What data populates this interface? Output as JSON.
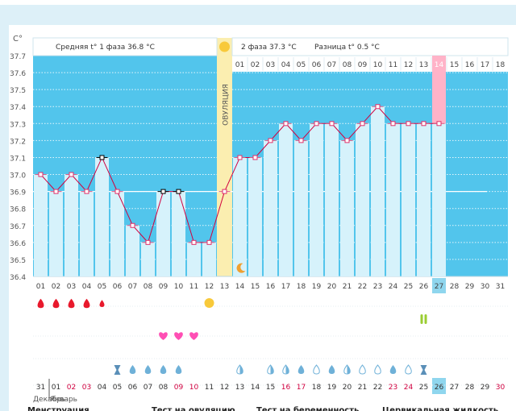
{
  "chart_data": {
    "type": "line",
    "title": "",
    "y_unit": "C°",
    "ylim": [
      36.4,
      37.7
    ],
    "y_ticks": [
      "37.7",
      "37.6",
      "37.5",
      "37.4",
      "37.3",
      "37.2",
      "37.1",
      "37.0",
      "36.9",
      "36.8",
      "36.7",
      "36.6",
      "36.5",
      "36.4"
    ],
    "cycle_days": 31,
    "ovulation_day": 13,
    "ovulation_label": "ОВУЛЯЦИЯ",
    "highlight_day": 27,
    "coverline": 36.9,
    "phase1_days": [
      1,
      2,
      3,
      4,
      5,
      6,
      7,
      8,
      9,
      10,
      11,
      12
    ],
    "phase2_days": [
      "01",
      "02",
      "03",
      "04",
      "05",
      "06",
      "07",
      "08",
      "09",
      "10",
      "11",
      "12",
      "13",
      "14",
      "15",
      "16",
      "17",
      "18"
    ],
    "phase2_highlight": "14",
    "date_row": [
      "01",
      "02",
      "03",
      "04",
      "05",
      "06",
      "07",
      "08",
      "09",
      "10",
      "11",
      "12",
      "13",
      "14",
      "15",
      "16",
      "17",
      "18",
      "19",
      "20",
      "21",
      "22",
      "23",
      "24",
      "25",
      "26",
      "27",
      "28",
      "29",
      "30",
      "31"
    ],
    "bbt": {
      "days": [
        1,
        2,
        3,
        4,
        5,
        6,
        7,
        8,
        9,
        10,
        11,
        12,
        13,
        14,
        15,
        16,
        17,
        18,
        19,
        20,
        21,
        22,
        23,
        24,
        25,
        26,
        27
      ],
      "values": [
        37.0,
        36.9,
        37.0,
        36.9,
        37.1,
        36.9,
        36.7,
        36.6,
        36.9,
        36.9,
        36.6,
        36.6,
        36.9,
        37.1,
        37.1,
        37.2,
        37.3,
        37.2,
        37.3,
        37.3,
        37.2,
        37.3,
        37.4,
        37.3,
        37.3,
        37.3,
        37.3
      ],
      "marked_days": [
        5,
        9,
        10
      ]
    },
    "stats": {
      "phase1_label": "Средняя t° 1 фаза",
      "phase1_value": "36.8 °C",
      "phase2_label": "2 фаза",
      "phase2_value": "37.3 °C",
      "diff_label": "Разница t°",
      "diff_value": "0.5 °C"
    },
    "symbols": {
      "menstruation": [
        [
          1,
          "drop-large"
        ],
        [
          2,
          "drop-large"
        ],
        [
          3,
          "drop-large"
        ],
        [
          4,
          "drop-large"
        ],
        [
          5,
          "drop-small"
        ]
      ],
      "ovulation_test_day": 12,
      "pregnancy_test_day": 26,
      "hearts": [
        9,
        10,
        11
      ],
      "cervical": [
        [
          6,
          "hourglass"
        ],
        [
          7,
          "drop-fill"
        ],
        [
          8,
          "drop-fill"
        ],
        [
          9,
          "drop-fill"
        ],
        [
          10,
          "drop-fill"
        ],
        [
          14,
          "drop-half"
        ],
        [
          16,
          "drop-half"
        ],
        [
          17,
          "drop-half"
        ],
        [
          18,
          "drop-fill"
        ],
        [
          19,
          "drop-outline"
        ],
        [
          20,
          "drop-fill"
        ],
        [
          21,
          "drop-half"
        ],
        [
          22,
          "drop-outline"
        ],
        [
          23,
          "drop-outline"
        ],
        [
          24,
          "drop-fill"
        ],
        [
          25,
          "drop-outline"
        ],
        [
          26,
          "hourglass"
        ]
      ]
    },
    "calendar": {
      "dates": [
        "31",
        "01",
        "02",
        "03",
        "04",
        "05",
        "06",
        "07",
        "08",
        "09",
        "10",
        "11",
        "12",
        "13",
        "14",
        "15",
        "16",
        "17",
        "18",
        "19",
        "20",
        "21",
        "22",
        "23",
        "24",
        "25",
        "26",
        "27",
        "28",
        "29",
        "30"
      ],
      "weekend_dates": [
        "02",
        "03",
        "09",
        "10",
        "16",
        "17",
        "23",
        "24",
        "30"
      ],
      "highlight_date": "26",
      "month_prev": "Декабрь",
      "month_next": "Январь"
    },
    "legend": [
      "Менструация",
      "Тест на овуляцию",
      "Тест на беременность",
      "Цервикальная жидкость"
    ]
  }
}
